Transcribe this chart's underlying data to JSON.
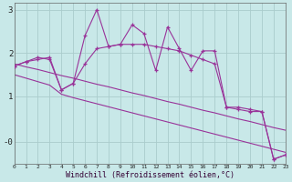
{
  "x": [
    0,
    1,
    2,
    3,
    4,
    5,
    6,
    7,
    8,
    9,
    10,
    11,
    12,
    13,
    14,
    15,
    16,
    17,
    18,
    19,
    20,
    21,
    22,
    23
  ],
  "line_spiky": [
    1.7,
    1.8,
    1.85,
    1.9,
    1.15,
    1.3,
    2.4,
    3.0,
    2.15,
    2.2,
    2.65,
    2.45,
    1.6,
    2.6,
    2.1,
    1.6,
    2.05,
    2.05,
    0.75,
    0.7,
    0.65,
    0.65,
    -0.45,
    -0.35
  ],
  "line_smooth": [
    1.7,
    1.8,
    1.9,
    1.85,
    1.15,
    1.3,
    1.75,
    2.1,
    2.15,
    2.2,
    2.2,
    2.2,
    2.15,
    2.1,
    2.05,
    1.95,
    1.85,
    1.75,
    0.75,
    0.75,
    0.7,
    0.65,
    -0.45,
    -0.35
  ],
  "line_trend1": [
    1.75,
    1.68,
    1.62,
    1.55,
    1.48,
    1.42,
    1.35,
    1.28,
    1.22,
    1.15,
    1.08,
    1.02,
    0.95,
    0.88,
    0.82,
    0.75,
    0.68,
    0.62,
    0.55,
    0.48,
    0.42,
    0.35,
    0.28,
    0.22
  ],
  "line_trend2": [
    1.5,
    1.42,
    1.34,
    1.26,
    1.05,
    0.97,
    0.9,
    0.83,
    0.76,
    0.69,
    0.62,
    0.55,
    0.48,
    0.41,
    0.34,
    0.27,
    0.2,
    0.13,
    0.06,
    -0.01,
    -0.08,
    -0.15,
    -0.22,
    -0.29
  ],
  "color": "#993399",
  "bg_color": "#c8e8e8",
  "grid_color": "#aacccc",
  "xlabel": "Windchill (Refroidissement éolien,°C)",
  "xlim": [
    0,
    23
  ],
  "ylim": [
    -0.55,
    3.15
  ],
  "ytick_labels": [
    "-0",
    "1",
    "2",
    "3"
  ],
  "ytick_vals": [
    -0.05,
    1.0,
    2.0,
    3.0
  ]
}
